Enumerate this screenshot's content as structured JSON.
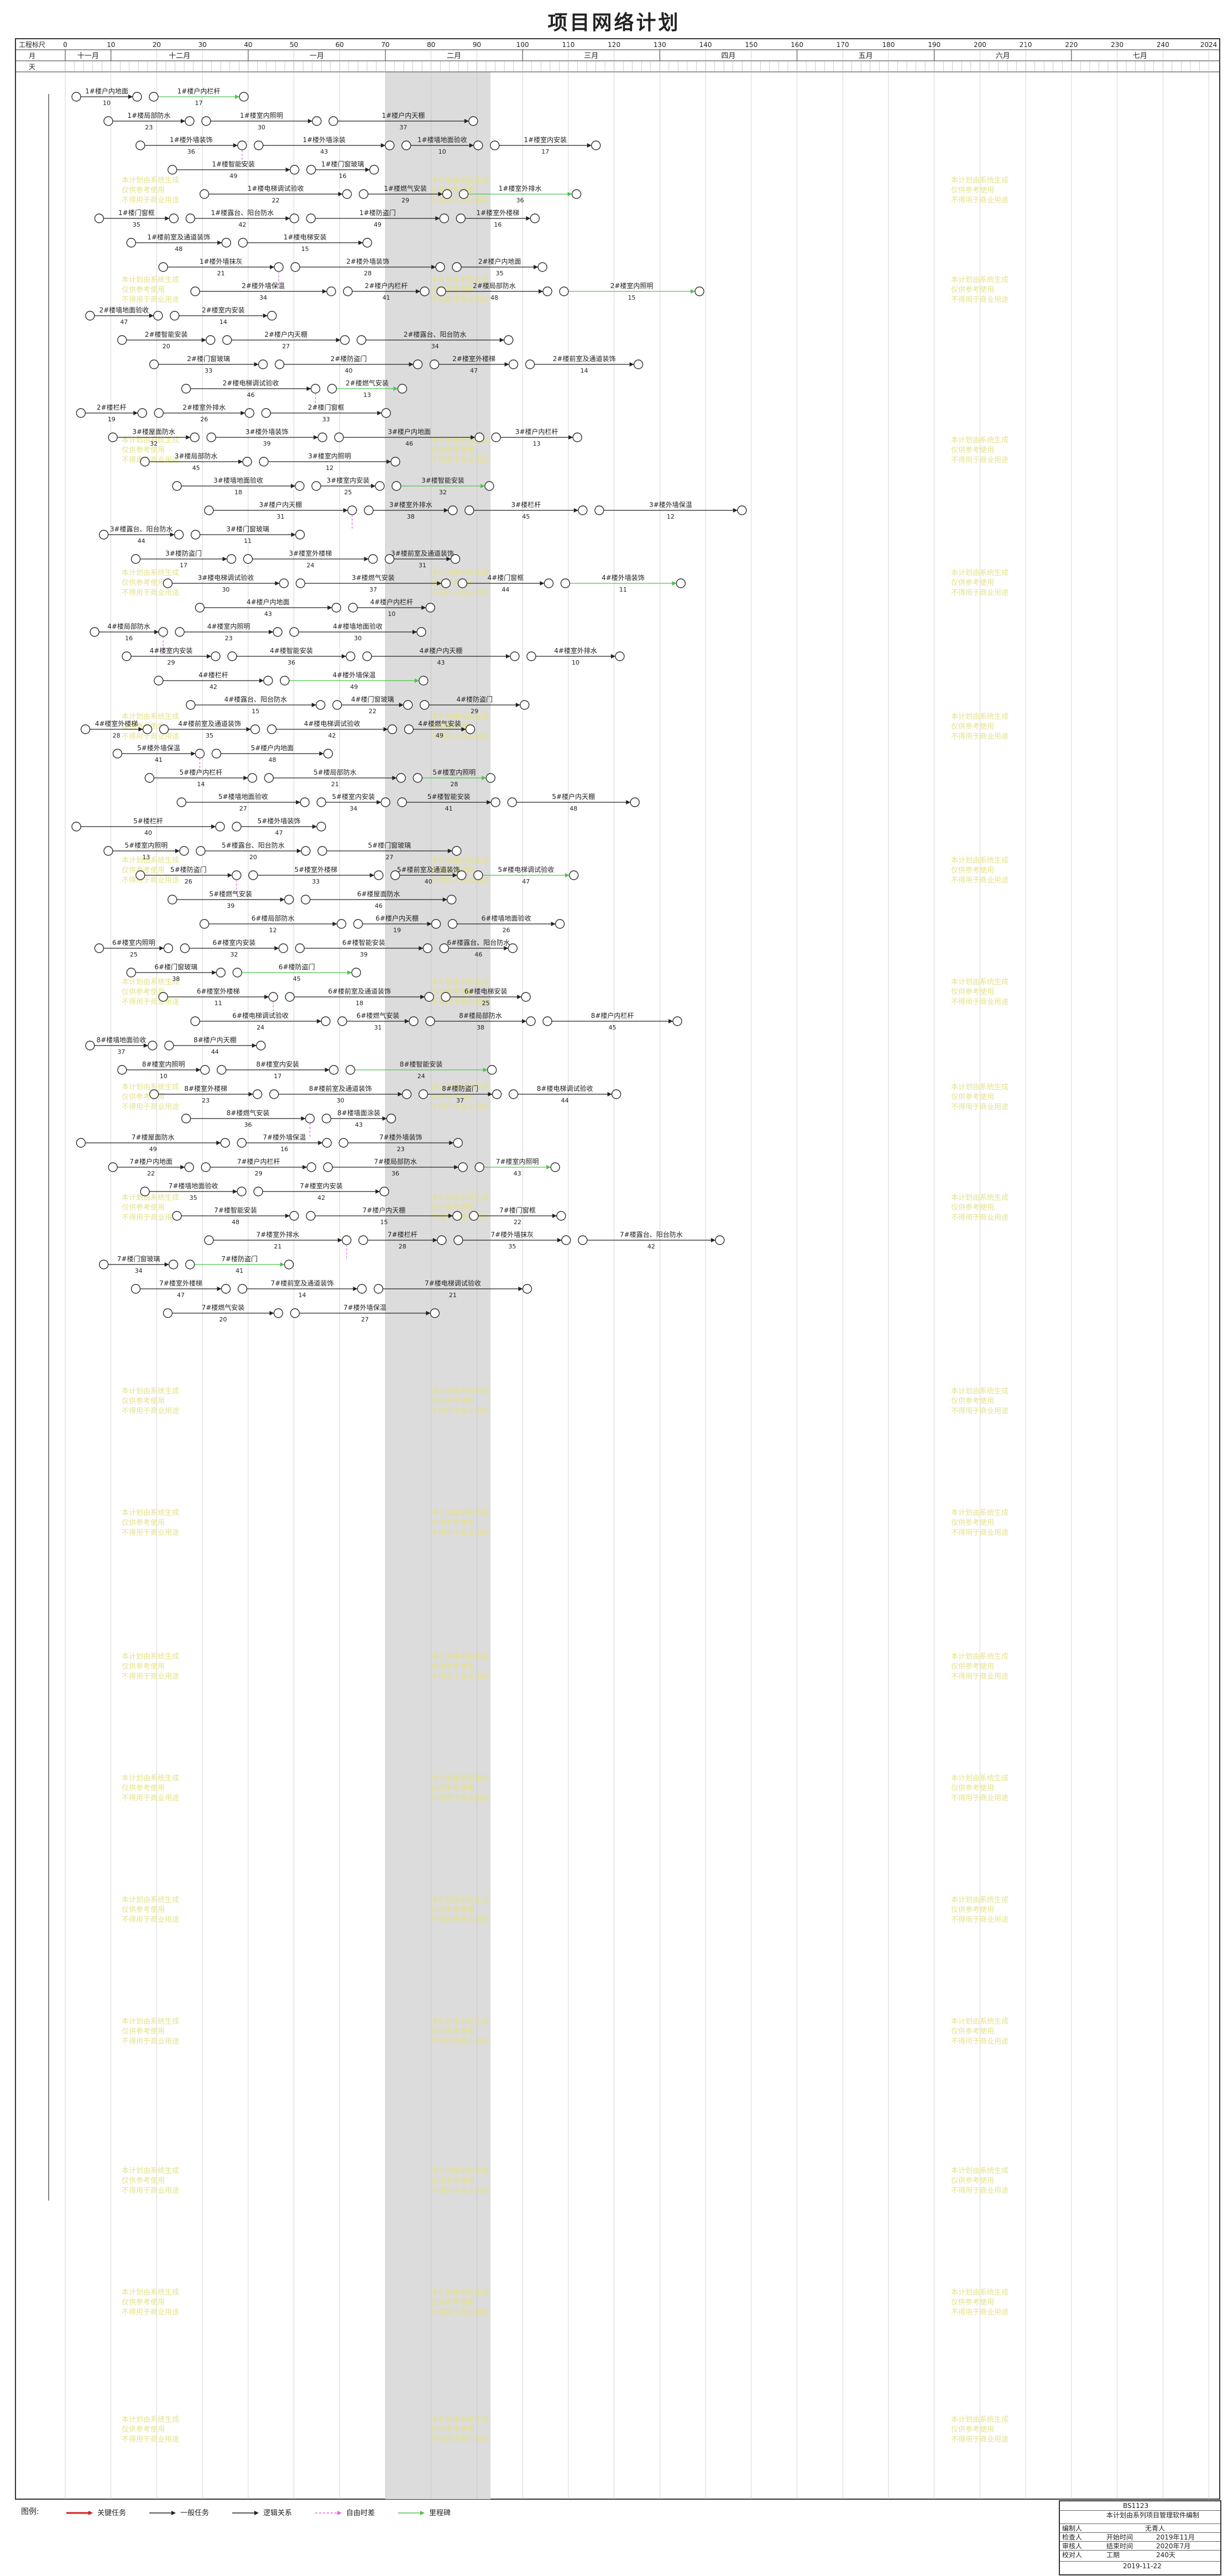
{
  "title": "项目网络计划",
  "header": {
    "row_labels": [
      "工程标尺",
      "月",
      "天"
    ],
    "days": [
      "0",
      "10",
      "20",
      "30",
      "40",
      "50",
      "60",
      "70",
      "80",
      "90",
      "100",
      "110",
      "120",
      "130",
      "140",
      "150",
      "160",
      "170",
      "180",
      "190",
      "200",
      "210",
      "220",
      "230",
      "240",
      "2024"
    ],
    "months": [
      "十一月",
      "十二月",
      "一月",
      "二月",
      "三月",
      "四月",
      "五月",
      "六月",
      "七月"
    ]
  },
  "colors": {
    "normal": "#222222",
    "critical": "#d81e1e",
    "logic": "#222222",
    "float": "#e066e0",
    "green": "#4fc24f",
    "shade": "#dcdcdc",
    "wm": "#e4e18a"
  },
  "tasks": [
    "1#楼户内地面",
    "1#楼户内栏杆",
    "1#楼局部防水",
    "1#楼室内照明",
    "1#楼户内天棚",
    "1#楼外墙装饰",
    "1#楼外墙涂装",
    "1#楼墙地面验收",
    "1#楼室内安装",
    "1#楼智能安装",
    "1#楼门窗玻璃",
    "1#楼电梯调试验收",
    "1#楼燃气安装",
    "1#楼室外排水",
    "1#楼门窗框",
    "1#楼露台、阳台防水",
    "1#楼防盗门",
    "1#楼室外楼梯",
    "1#楼前室及通道装饰",
    "1#楼电梯安装",
    "1#楼外墙抹灰",
    "2#楼外墙装饰",
    "2#楼户内地面",
    "2#楼外墙保温",
    "2#楼户内栏杆",
    "2#楼局部防水",
    "2#楼室内照明",
    "2#楼墙地面验收",
    "2#楼室内安装",
    "2#楼智能安装",
    "2#楼户内天棚",
    "2#楼露台、阳台防水",
    "2#楼门窗玻璃",
    "2#楼防盗门",
    "2#楼室外楼梯",
    "2#楼前室及通道装饰",
    "2#楼电梯调试验收",
    "2#楼燃气安装",
    "2#楼栏杆",
    "2#楼室外排水",
    "2#楼门窗框",
    "3#楼屋面防水",
    "3#楼外墙装饰",
    "3#楼户内地面",
    "3#楼户内栏杆",
    "3#楼局部防水",
    "3#楼室内照明",
    "3#楼墙地面验收",
    "3#楼室内安装",
    "3#楼智能安装",
    "3#楼户内天棚",
    "3#楼室外排水",
    "3#楼栏杆",
    "3#楼外墙保温",
    "3#楼露台、阳台防水",
    "3#楼门窗玻璃",
    "3#楼防盗门",
    "3#楼室外楼梯",
    "3#楼前室及通道装饰",
    "3#楼电梯调试验收",
    "3#楼燃气安装",
    "4#楼门窗框",
    "4#楼外墙装饰",
    "4#楼户内地面",
    "4#楼户内栏杆",
    "4#楼局部防水",
    "4#楼室内照明",
    "4#楼墙地面验收",
    "4#楼室内安装",
    "4#楼智能安装",
    "4#楼户内天棚",
    "4#楼室外排水",
    "4#楼栏杆",
    "4#楼外墙保温",
    "4#楼露台、阳台防水",
    "4#楼门窗玻璃",
    "4#楼防盗门",
    "4#楼室外楼梯",
    "4#楼前室及通道装饰",
    "4#楼电梯调试验收",
    "4#楼燃气安装",
    "5#楼外墙保温",
    "5#楼户内地面",
    "5#楼户内栏杆",
    "5#楼局部防水",
    "5#楼室内照明",
    "5#楼墙地面验收",
    "5#楼室内安装",
    "5#楼智能安装",
    "5#楼户内天棚",
    "5#楼栏杆",
    "5#楼外墙装饰",
    "5#楼室内照明",
    "5#楼露台、阳台防水",
    "5#楼门窗玻璃",
    "5#楼防盗门",
    "5#楼室外楼梯",
    "5#楼前室及通道装饰",
    "5#楼电梯调试验收",
    "5#楼燃气安装",
    "6#楼屋面防水",
    "6#楼局部防水",
    "6#楼户内天棚",
    "6#楼墙地面验收",
    "6#楼室内照明",
    "6#楼室内安装",
    "6#楼智能安装",
    "6#楼露台、阳台防水",
    "6#楼门窗玻璃",
    "6#楼防盗门",
    "6#楼室外楼梯",
    "6#楼前室及通道装饰",
    "6#楼电梯安装",
    "6#楼电梯调试验收",
    "6#楼燃气安装",
    "8#楼局部防水",
    "8#楼户内栏杆",
    "8#楼墙地面验收",
    "8#楼户内天棚",
    "8#楼室内照明",
    "8#楼室内安装",
    "8#楼智能安装",
    "8#楼室外楼梯",
    "8#楼前室及通道装饰",
    "8#楼防盗门",
    "8#楼电梯调试验收",
    "8#楼燃气安装",
    "8#楼墙面涂装",
    "7#楼屋面防水",
    "7#楼外墙保温",
    "7#楼外墙装饰",
    "7#楼户内地面",
    "7#楼户内栏杆",
    "7#楼局部防水",
    "7#楼室内照明",
    "7#楼墙地面验收",
    "7#楼室内安装",
    "7#楼智能安装",
    "7#楼户内天棚",
    "7#楼门窗框",
    "7#楼室外排水",
    "7#楼栏杆",
    "7#楼外墙抹灰",
    "7#楼露台、阳台防水",
    "7#楼门窗玻璃",
    "7#楼防盗门",
    "7#楼室外楼梯",
    "7#楼前室及通道装饰",
    "7#楼电梯调试验收",
    "7#楼燃气安装",
    "7#楼外墙保温"
  ],
  "legend": {
    "label": "图例:",
    "items": [
      "关键任务",
      "一般任务",
      "逻辑关系",
      "自由时差",
      "里程碑"
    ]
  },
  "watermark": [
    "本计划由系统生成",
    "仅供参考使用",
    "不得用于商业用途"
  ],
  "title_block": {
    "code": "BS1123",
    "project": "本计划由系列项目管理软件编制",
    "rows": [
      [
        "编制人",
        "无青人"
      ],
      [
        "检查人",
        "开始时间",
        "2019年11月"
      ],
      [
        "审核人",
        "结束时间",
        "2020年7月"
      ],
      [
        "校对人",
        "工期",
        "240天"
      ]
    ],
    "date": "2019-11-22"
  }
}
